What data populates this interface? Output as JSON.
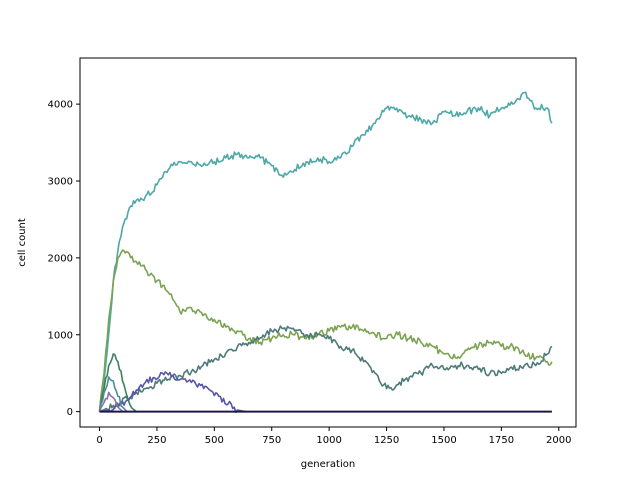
{
  "chart_data": {
    "type": "line",
    "xlabel": "generation",
    "ylabel": "cell count",
    "xlim": [
      -85,
      2075
    ],
    "ylim": [
      -200,
      4600
    ],
    "x_ticks": [
      0,
      250,
      500,
      750,
      1000,
      1250,
      1500,
      1750,
      2000
    ],
    "y_ticks": [
      0,
      1000,
      2000,
      3000,
      4000
    ],
    "grid": false,
    "legend": "none",
    "series": [
      {
        "color": "#4fa8a8",
        "x": [
          0,
          20,
          40,
          60,
          80,
          100,
          130,
          160,
          200,
          250,
          300,
          350,
          400,
          450,
          500,
          550,
          600,
          650,
          700,
          750,
          800,
          850,
          900,
          950,
          1000,
          1050,
          1100,
          1150,
          1200,
          1250,
          1300,
          1350,
          1400,
          1450,
          1500,
          1550,
          1600,
          1650,
          1700,
          1750,
          1800,
          1850,
          1900,
          1950,
          1970
        ],
        "y": [
          0,
          400,
          1000,
          1700,
          2100,
          2400,
          2650,
          2750,
          2800,
          2950,
          3150,
          3250,
          3250,
          3200,
          3250,
          3300,
          3350,
          3300,
          3300,
          3200,
          3050,
          3150,
          3250,
          3300,
          3250,
          3300,
          3450,
          3600,
          3750,
          3950,
          3900,
          3850,
          3800,
          3750,
          3900,
          3850,
          3900,
          3950,
          3850,
          3950,
          4000,
          4150,
          3950,
          3950,
          3750
        ]
      },
      {
        "color": "#7ba352",
        "x": [
          0,
          20,
          40,
          60,
          80,
          100,
          130,
          160,
          200,
          250,
          300,
          350,
          400,
          450,
          500,
          550,
          600,
          650,
          700,
          750,
          800,
          850,
          900,
          950,
          1000,
          1050,
          1100,
          1150,
          1200,
          1250,
          1300,
          1350,
          1400,
          1450,
          1500,
          1550,
          1600,
          1650,
          1700,
          1750,
          1800,
          1850,
          1900,
          1950,
          1970
        ],
        "y": [
          0,
          500,
          1200,
          1700,
          2000,
          2100,
          2050,
          1950,
          1850,
          1700,
          1550,
          1300,
          1350,
          1250,
          1200,
          1100,
          1050,
          950,
          900,
          950,
          1000,
          1000,
          950,
          1000,
          1050,
          1100,
          1100,
          1050,
          1000,
          950,
          1000,
          950,
          900,
          850,
          750,
          700,
          800,
          850,
          900,
          850,
          850,
          750,
          700,
          650,
          650
        ]
      },
      {
        "color": "#4e7a7a",
        "x": [
          0,
          30,
          60,
          90,
          120,
          160,
          200,
          250,
          300,
          350,
          400,
          450,
          500,
          550,
          600,
          650,
          700,
          750,
          800,
          850,
          900,
          950,
          1000,
          1050,
          1100,
          1150,
          1200,
          1250,
          1300,
          1350,
          1400,
          1450,
          1500,
          1550,
          1600,
          1650,
          1700,
          1750,
          1800,
          1850,
          1900,
          1950,
          1970
        ],
        "y": [
          0,
          40,
          80,
          120,
          170,
          250,
          300,
          370,
          420,
          470,
          520,
          600,
          680,
          760,
          840,
          900,
          960,
          1050,
          1080,
          1050,
          1000,
          1000,
          950,
          850,
          800,
          650,
          500,
          300,
          350,
          450,
          500,
          600,
          550,
          600,
          600,
          550,
          500,
          500,
          550,
          600,
          600,
          750,
          850
        ]
      },
      {
        "color": "#5555aa",
        "x": [
          0,
          40,
          80,
          120,
          160,
          200,
          240,
          280,
          320,
          360,
          400,
          440,
          480,
          520,
          560,
          600,
          640
        ],
        "y": [
          0,
          20,
          60,
          150,
          280,
          380,
          440,
          480,
          470,
          430,
          380,
          340,
          280,
          200,
          100,
          20,
          0
        ]
      },
      {
        "color": "#3f7f5f",
        "x": [
          0,
          20,
          40,
          60,
          80,
          100,
          120,
          140,
          160
        ],
        "y": [
          0,
          300,
          600,
          750,
          650,
          400,
          200,
          50,
          0
        ]
      },
      {
        "color": "#4a9090",
        "x": [
          0,
          20,
          40,
          60,
          80,
          100,
          120
        ],
        "y": [
          0,
          250,
          450,
          400,
          200,
          60,
          0
        ]
      },
      {
        "color": "#8a6fb0",
        "x": [
          0,
          20,
          40,
          60,
          80,
          100
        ],
        "y": [
          0,
          120,
          250,
          180,
          60,
          0
        ]
      },
      {
        "color": "#1e1846",
        "x": [
          0,
          1970
        ],
        "y": [
          0,
          0
        ]
      }
    ]
  }
}
